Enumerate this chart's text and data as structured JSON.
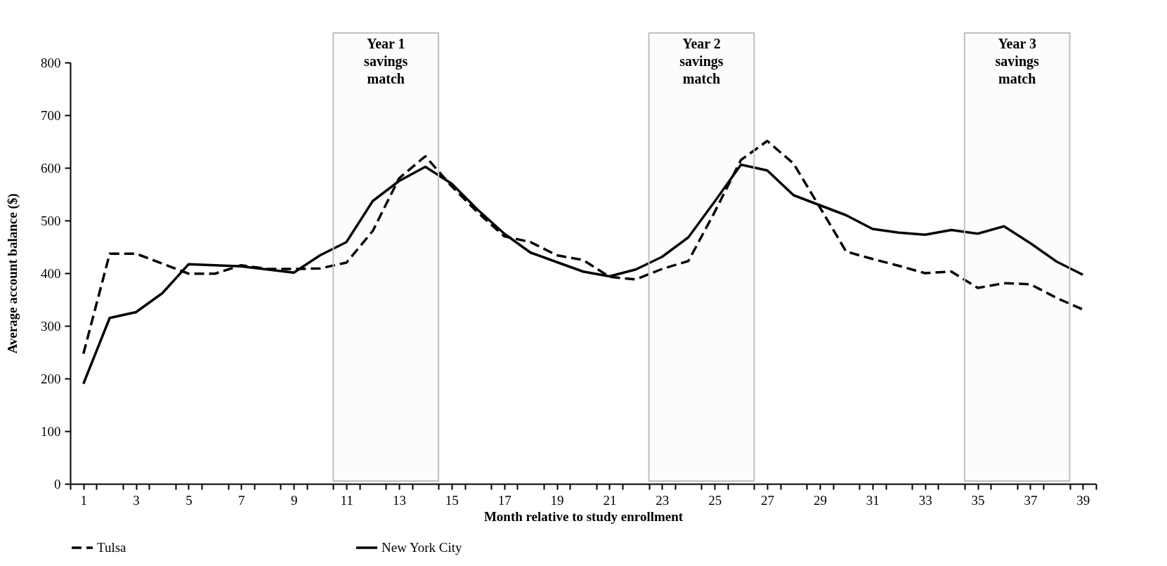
{
  "chart_data": {
    "type": "line",
    "xlabel": "Month relative to study enrollment",
    "ylabel": "Average account balance ($)",
    "x": [
      1,
      2,
      3,
      4,
      5,
      6,
      7,
      8,
      9,
      10,
      11,
      12,
      13,
      14,
      15,
      16,
      17,
      18,
      19,
      20,
      21,
      22,
      23,
      24,
      25,
      26,
      27,
      28,
      29,
      30,
      31,
      32,
      33,
      34,
      35,
      36,
      37,
      38,
      39
    ],
    "series": [
      {
        "name": "Tulsa",
        "color": "#000000",
        "line_style": "dashed",
        "values": [
          247,
          437,
          437,
          418,
          399,
          399,
          415,
          408,
          408,
          409,
          420,
          480,
          580,
          622,
          565,
          515,
          470,
          459,
          434,
          425,
          393,
          388,
          408,
          423,
          516,
          615,
          651,
          608,
          525,
          441,
          427,
          414,
          400,
          403,
          372,
          381,
          379,
          353,
          331
        ]
      },
      {
        "name": "New York City",
        "color": "#000000",
        "line_style": "solid",
        "values": [
          190,
          315,
          326,
          362,
          417,
          415,
          413,
          407,
          401,
          434,
          459,
          537,
          575,
          602,
          570,
          520,
          475,
          439,
          421,
          403,
          394,
          407,
          431,
          468,
          536,
          606,
          595,
          548,
          529,
          510,
          484,
          477,
          473,
          482,
          475,
          489,
          457,
          422,
          397
        ]
      }
    ],
    "xlim": [
      0.5,
      39.5
    ],
    "xticks": [
      {
        "value": 0.5,
        "label": null
      },
      1,
      {
        "value": 1.5,
        "label": null
      },
      {
        "value": 2.5,
        "label": null
      },
      3,
      {
        "value": 3.5,
        "label": null
      },
      {
        "value": 4.5,
        "label": null
      },
      5,
      {
        "value": 5.5,
        "label": null
      },
      {
        "value": 6.5,
        "label": null
      },
      7,
      {
        "value": 7.5,
        "label": null
      },
      {
        "value": 8.5,
        "label": null
      },
      9,
      {
        "value": 9.5,
        "label": null
      },
      {
        "value": 10.5,
        "label": null
      },
      11,
      {
        "value": 11.5,
        "label": null
      },
      {
        "value": 12.5,
        "label": null
      },
      13,
      {
        "value": 13.5,
        "label": null
      },
      {
        "value": 14.5,
        "label": null
      },
      15,
      {
        "value": 15.5,
        "label": null
      },
      {
        "value": 16.5,
        "label": null
      },
      17,
      {
        "value": 17.5,
        "label": null
      },
      {
        "value": 18.5,
        "label": null
      },
      19,
      {
        "value": 19.5,
        "label": null
      },
      {
        "value": 20.5,
        "label": null
      },
      21,
      {
        "value": 21.5,
        "label": null
      },
      {
        "value": 22.5,
        "label": null
      },
      23,
      {
        "value": 23.5,
        "label": null
      },
      {
        "value": 24.5,
        "label": null
      },
      25,
      {
        "value": 25.5,
        "label": null
      },
      {
        "value": 26.5,
        "label": null
      },
      27,
      {
        "value": 27.5,
        "label": null
      },
      {
        "value": 28.5,
        "label": null
      },
      29,
      {
        "value": 29.5,
        "label": null
      },
      {
        "value": 30.5,
        "label": null
      },
      31,
      {
        "value": 31.5,
        "label": null
      },
      {
        "value": 32.5,
        "label": null
      },
      33,
      {
        "value": 33.5,
        "label": null
      },
      {
        "value": 34.5,
        "label": null
      },
      35,
      {
        "value": 35.5,
        "label": null
      },
      {
        "value": 36.5,
        "label": null
      },
      37,
      {
        "value": 37.5,
        "label": null
      },
      {
        "value": 38.5,
        "label": null
      },
      39,
      {
        "value": 39.5,
        "label": null
      }
    ],
    "ylim": [
      0,
      800
    ],
    "yticks": [
      0,
      100,
      200,
      300,
      400,
      500,
      600,
      700,
      800
    ],
    "bands": [
      {
        "axis": "x",
        "from": 10.5,
        "to": 14.5,
        "label": "Year 1 savings match",
        "color": "#bfbfbf"
      },
      {
        "axis": "x",
        "from": 22.5,
        "to": 26.5,
        "label": "Year 2 savings match",
        "color": "#bfbfbf"
      },
      {
        "axis": "x",
        "from": 34.5,
        "to": 38.5,
        "label": "Year 3 savings match",
        "color": "#bfbfbf"
      }
    ],
    "grid": false,
    "legend": "bottom",
    "marker": "none"
  }
}
